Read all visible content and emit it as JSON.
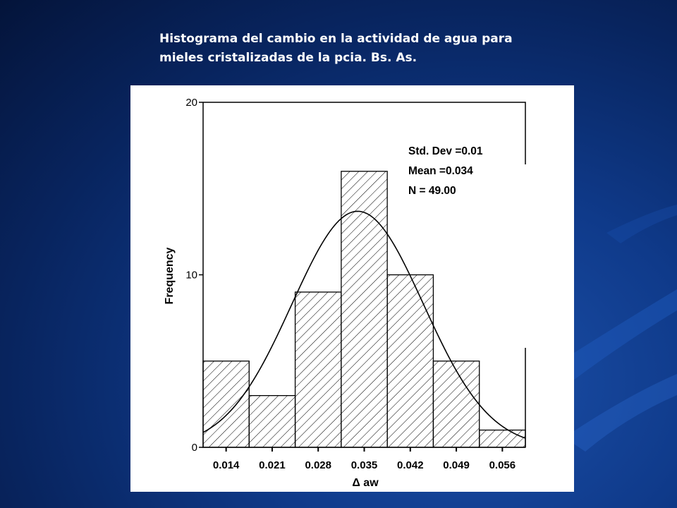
{
  "slide": {
    "title_line1": "Histograma del cambio en la actividad de agua para",
    "title_line2": "mieles cristalizadas de la pcia. Bs. As."
  },
  "colors": {
    "background": "#0f3a8a",
    "title_text": "#ffffff",
    "panel": "#ffffff",
    "ink": "#000000"
  },
  "chart_data": {
    "type": "bar",
    "categories": [
      "0.014",
      "0.021",
      "0.028",
      "0.035",
      "0.042",
      "0.049",
      "0.056"
    ],
    "bin_centers": [
      0.014,
      0.021,
      0.028,
      0.035,
      0.042,
      0.049,
      0.056
    ],
    "bin_width": 0.007,
    "values": [
      5,
      3,
      9,
      16,
      10,
      5,
      1
    ],
    "xlabel": "Δ aw",
    "ylabel": "Frequency",
    "xlim": [
      0.0105,
      0.0595
    ],
    "ylim": [
      0,
      20
    ],
    "yticks": [
      0,
      10,
      20
    ],
    "fill_pattern": "diagonal-hatch",
    "grid": false,
    "normal_curve": {
      "mean": 0.034,
      "std": 0.01,
      "n": 49,
      "bin_width": 0.007
    },
    "stats_lines": [
      "Std. Dev =0.01",
      "Mean =0.034",
      "N = 49.00"
    ],
    "stats_placement": "top-right"
  }
}
